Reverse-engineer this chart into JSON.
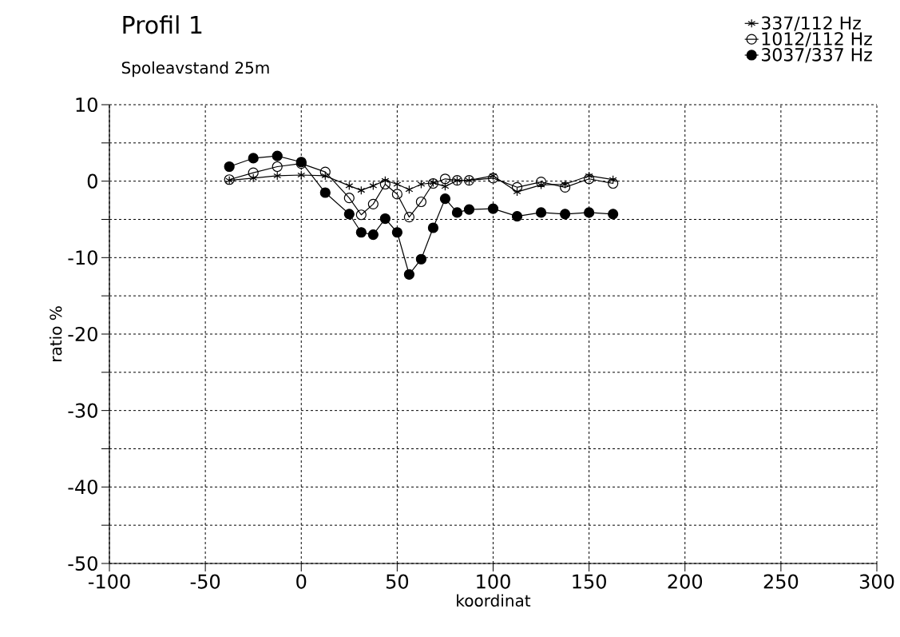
{
  "chart_data": {
    "type": "line",
    "title": "Profil 1",
    "subtitle": "Spoleavstand 25m",
    "xlabel": "koordinat",
    "ylabel": "ratio %",
    "x": [
      -37.5,
      -25,
      -12.5,
      0,
      12.5,
      25,
      31.25,
      37.5,
      43.75,
      50,
      56.25,
      62.5,
      68.75,
      75,
      81.25,
      87.5,
      100,
      112.5,
      125,
      137.5,
      150,
      162.5
    ],
    "series": [
      {
        "name": "337/112  Hz",
        "color": "#000000",
        "marker": "cross",
        "values": [
          0.1,
          0.4,
          0.7,
          0.8,
          0.7,
          -0.6,
          -1.2,
          -0.6,
          0.1,
          -0.4,
          -1.1,
          -0.4,
          -0.2,
          -0.7,
          0.1,
          0.1,
          0.7,
          -1.4,
          -0.5,
          -0.4,
          0.7,
          0.2
        ]
      },
      {
        "name": "1012/112  Hz",
        "color": "#000000",
        "marker": "circle",
        "values": [
          0.2,
          1.1,
          1.9,
          2.3,
          1.2,
          -2.2,
          -4.4,
          -3.0,
          -0.4,
          -1.7,
          -4.7,
          -2.7,
          -0.3,
          0.3,
          0.1,
          0.1,
          0.4,
          -0.8,
          -0.1,
          -0.8,
          0.3,
          -0.3
        ]
      },
      {
        "name": "3037/337  Hz",
        "color": "#000000",
        "marker": "filled circle",
        "values": [
          1.9,
          3.0,
          3.3,
          2.5,
          -1.5,
          -4.3,
          -6.7,
          -7.0,
          -4.9,
          -6.7,
          -12.2,
          -10.2,
          -6.1,
          -2.3,
          -4.1,
          -3.7,
          -3.6,
          -4.6,
          -4.1,
          -4.3,
          -4.1,
          -4.3
        ]
      }
    ],
    "xlim": [
      -100,
      300
    ],
    "xticks": [
      -100,
      -50,
      0,
      50,
      100,
      150,
      200,
      250,
      300
    ],
    "ylim": [
      -50,
      10
    ],
    "yticks": [
      -50,
      {
        "value": -45,
        "label": null
      },
      -40,
      {
        "value": -35,
        "label": null
      },
      -30,
      {
        "value": -25,
        "label": null
      },
      -20,
      {
        "value": -15,
        "label": null
      },
      -10,
      {
        "value": -5,
        "label": null
      },
      0,
      {
        "value": 5,
        "label": null
      },
      10
    ],
    "grid": true,
    "legend": "top right",
    "line_style": "solid"
  }
}
